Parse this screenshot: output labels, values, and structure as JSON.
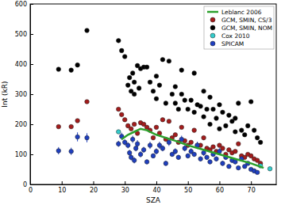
{
  "chart_data": {
    "type": "scatter",
    "x_label": "SZA",
    "y_label": "Int (kR)",
    "xlim": [
      0,
      78
    ],
    "xticks": [
      0,
      10,
      20,
      30,
      40,
      50,
      60,
      70
    ],
    "ylim": [
      0,
      600
    ],
    "yticks": [
      0,
      100,
      200,
      300,
      400,
      500,
      600
    ],
    "grid": false,
    "legend": "upper right",
    "series": [
      {
        "name": "Leblanc 2006",
        "type": "line",
        "color": "#2ca02c",
        "line_style": "solid",
        "x": [
          29,
          31,
          33,
          35,
          37,
          40,
          43,
          46,
          50,
          55,
          60,
          65,
          70,
          74
        ],
        "values": [
          150,
          165,
          175,
          185,
          180,
          165,
          155,
          145,
          130,
          115,
          100,
          85,
          70,
          55
        ]
      },
      {
        "name": "GCM, SMIN, CS/3",
        "type": "scatter",
        "color": "#a31c1c",
        "marker": "circle",
        "x": [
          9,
          13,
          15,
          18,
          28,
          29,
          30,
          31,
          32,
          33,
          34,
          35,
          36,
          37,
          38,
          39,
          40,
          41,
          42,
          43,
          44,
          45,
          46,
          47,
          48,
          49,
          50,
          51,
          52,
          53,
          54,
          55,
          56,
          57,
          58,
          59,
          60,
          61,
          62,
          63,
          64,
          65,
          66,
          67,
          68,
          69,
          70,
          71,
          72,
          73
        ],
        "values": [
          192,
          192,
          212,
          275,
          250,
          232,
          215,
          195,
          185,
          200,
          170,
          205,
          200,
          190,
          180,
          155,
          190,
          170,
          215,
          150,
          210,
          155,
          165,
          140,
          190,
          145,
          130,
          140,
          180,
          130,
          130,
          155,
          120,
          115,
          125,
          110,
          130,
          120,
          100,
          115,
          105,
          110,
          135,
          95,
          90,
          100,
          95,
          85,
          80,
          70
        ]
      },
      {
        "name": "GCM, SMIN, NOM",
        "type": "scatter",
        "color": "#000000",
        "marker": "circle",
        "x": [
          9,
          13,
          15,
          18,
          28,
          29,
          30,
          31,
          31.5,
          32,
          32.5,
          33,
          33,
          34,
          34.5,
          35,
          36,
          37,
          38,
          39,
          40,
          40,
          41,
          42,
          43,
          44,
          45,
          46,
          46,
          47,
          48,
          48,
          49,
          50,
          51,
          52,
          52,
          53,
          54,
          55,
          55,
          56,
          57,
          57,
          58,
          59,
          60,
          60,
          61,
          62,
          63,
          64,
          65,
          65,
          66,
          67,
          68,
          69,
          70,
          71,
          72,
          73
        ],
        "values": [
          383,
          380,
          397,
          512,
          478,
          445,
          425,
          330,
          355,
          310,
          370,
          300,
          340,
          395,
          320,
          385,
          390,
          390,
          340,
          310,
          360,
          285,
          330,
          415,
          270,
          410,
          300,
          325,
          270,
          250,
          380,
          300,
          280,
          250,
          280,
          370,
          240,
          265,
          260,
          310,
          225,
          250,
          200,
          290,
          250,
          220,
          265,
          185,
          240,
          195,
          230,
          210,
          220,
          175,
          270,
          180,
          165,
          195,
          275,
          180,
          155,
          140
        ]
      },
      {
        "name": "Cox 2010",
        "type": "scatter",
        "color": "#33cccc",
        "marker": "circle",
        "x": [
          28,
          73,
          76
        ],
        "values": [
          175,
          62,
          52
        ]
      },
      {
        "name": "SPICAM",
        "type": "scatter",
        "color": "#1f3fbf",
        "marker": "circle",
        "x": [
          9,
          13,
          15,
          18,
          28,
          29,
          30,
          31,
          31.5,
          32,
          32.5,
          33,
          33.5,
          34,
          35,
          36,
          37,
          38,
          39,
          40,
          41,
          42,
          43,
          44,
          45,
          46,
          47,
          48,
          49,
          50,
          51,
          52,
          53,
          54,
          55,
          56,
          57,
          58,
          59,
          60,
          61,
          62,
          63,
          64,
          65,
          66,
          67,
          68,
          69,
          70,
          71,
          72
        ],
        "values": [
          112,
          110,
          158,
          155,
          135,
          160,
          140,
          130,
          105,
          90,
          150,
          80,
          120,
          135,
          100,
          115,
          75,
          130,
          95,
          110,
          130,
          120,
          70,
          140,
          100,
          110,
          90,
          150,
          120,
          95,
          110,
          100,
          130,
          85,
          105,
          90,
          75,
          100,
          85,
          110,
          70,
          90,
          60,
          80,
          75,
          55,
          85,
          60,
          70,
          50,
          45,
          40
        ],
        "errors": [
          12,
          12,
          15,
          15,
          10,
          12,
          10,
          10,
          10,
          10,
          12,
          10,
          10,
          12,
          10,
          10,
          8,
          12,
          8,
          10,
          12,
          10,
          8,
          12,
          8,
          10,
          8,
          12,
          10,
          8,
          10,
          8,
          12,
          8,
          10,
          8,
          8,
          8,
          8,
          10,
          8,
          8,
          6,
          8,
          8,
          6,
          8,
          6,
          6,
          6,
          6,
          5
        ]
      }
    ]
  }
}
